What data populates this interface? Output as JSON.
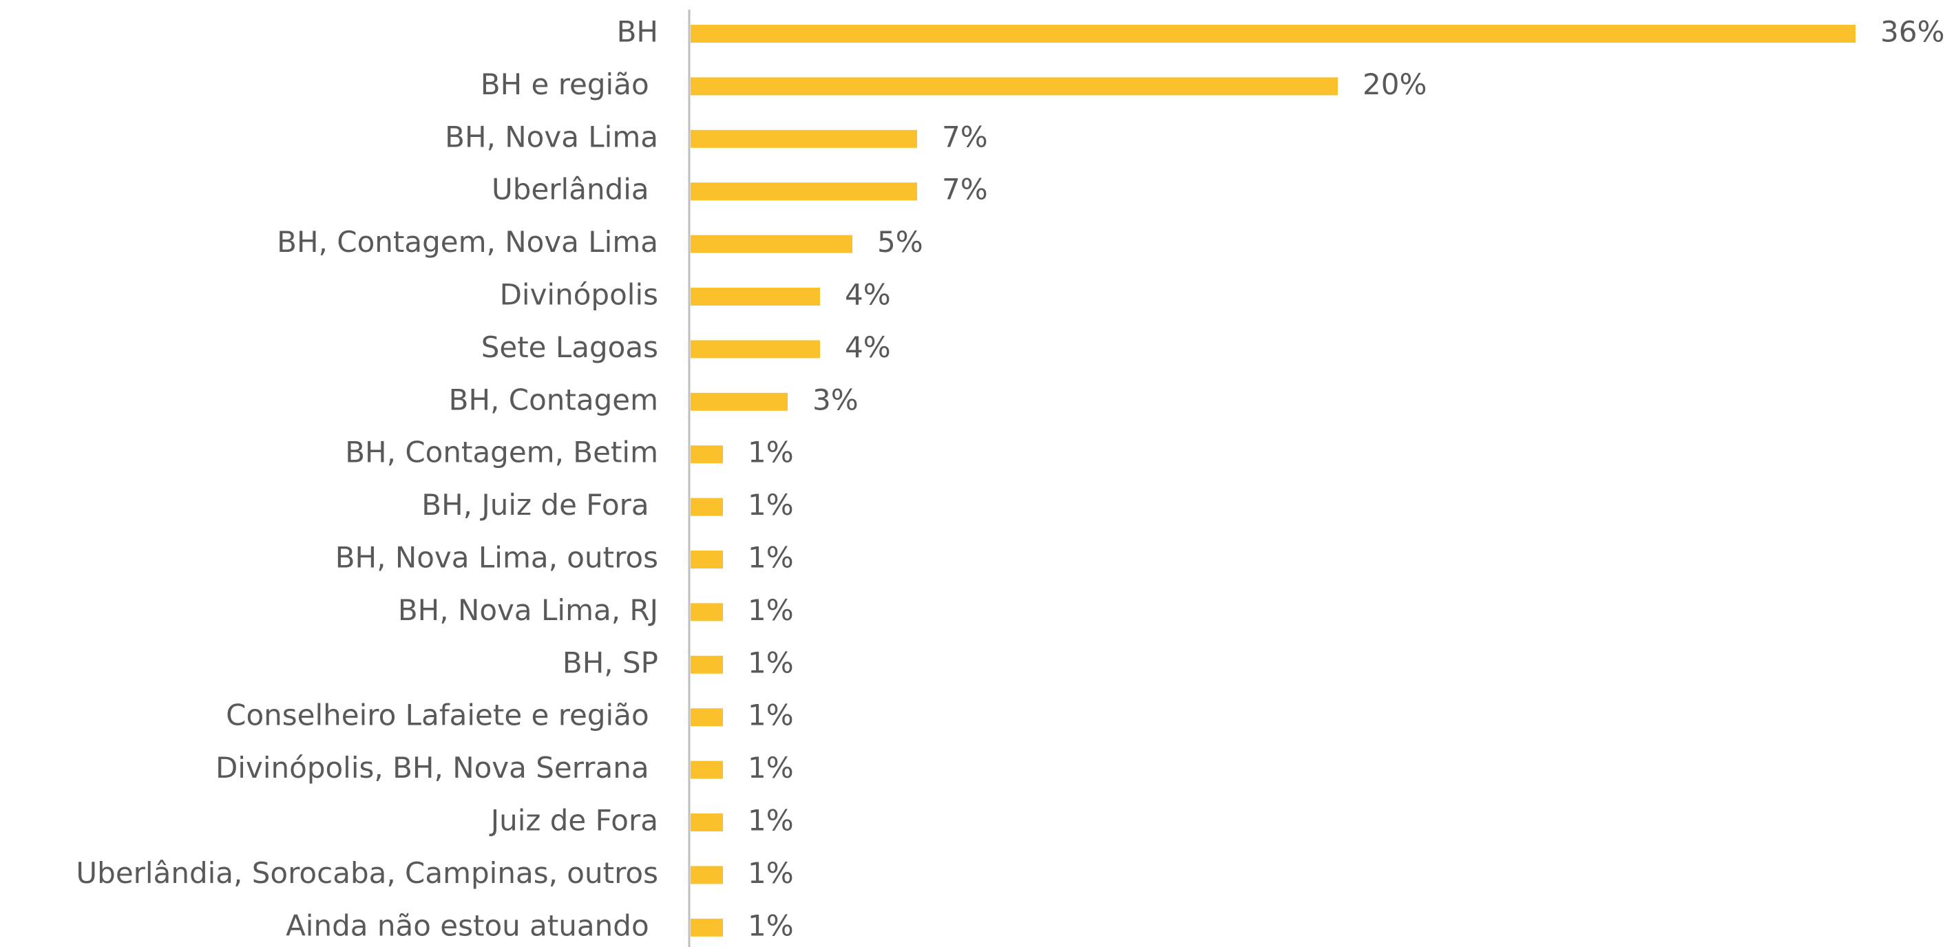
{
  "chart_data": {
    "type": "bar",
    "orientation": "horizontal",
    "color": "#fbc12d",
    "categories": [
      "BH",
      "BH e região ",
      "BH, Nova Lima",
      "Uberlândia ",
      "BH, Contagem, Nova Lima",
      "Divinópolis",
      "Sete Lagoas",
      "BH, Contagem",
      "BH, Contagem, Betim",
      "BH, Juiz de Fora ",
      "BH, Nova Lima, outros",
      "BH, Nova Lima, RJ",
      "BH, SP",
      "Conselheiro Lafaiete e região ",
      "Divinópolis, BH, Nova Serrana ",
      "Juiz de Fora",
      "Uberlândia, Sorocaba, Campinas, outros",
      "Ainda não estou atuando "
    ],
    "values": [
      36,
      20,
      7,
      7,
      5,
      4,
      4,
      3,
      1,
      1,
      1,
      1,
      1,
      1,
      1,
      1,
      1,
      1
    ],
    "value_labels": [
      "36%",
      "20%",
      "7%",
      "7%",
      "5%",
      "4%",
      "4%",
      "3%",
      "1%",
      "1%",
      "1%",
      "1%",
      "1%",
      "1%",
      "1%",
      "1%",
      "1%",
      "1%"
    ]
  }
}
